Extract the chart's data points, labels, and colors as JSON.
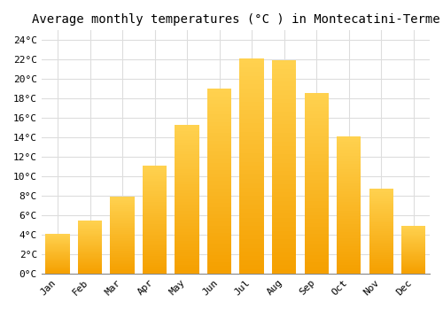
{
  "months": [
    "Jan",
    "Feb",
    "Mar",
    "Apr",
    "May",
    "Jun",
    "Jul",
    "Aug",
    "Sep",
    "Oct",
    "Nov",
    "Dec"
  ],
  "temperatures": [
    4.1,
    5.4,
    7.9,
    11.1,
    15.3,
    19.0,
    22.1,
    21.9,
    18.6,
    14.1,
    8.7,
    4.9
  ],
  "bar_color_light": "#FFCC44",
  "bar_color_dark": "#F5A000",
  "title": "Average monthly temperatures (°C ) in Montecatini-Terme",
  "title_fontsize": 10,
  "ylim": [
    0,
    25
  ],
  "ytick_values": [
    0,
    2,
    4,
    6,
    8,
    10,
    12,
    14,
    16,
    18,
    20,
    22,
    24
  ],
  "ytick_labels": [
    "0°C",
    "2°C",
    "4°C",
    "6°C",
    "8°C",
    "10°C",
    "12°C",
    "14°C",
    "16°C",
    "18°C",
    "20°C",
    "22°C",
    "24°C"
  ],
  "background_color": "#FFFFFF",
  "grid_color": "#DDDDDD",
  "tick_label_fontsize": 8,
  "font_family": "monospace",
  "bar_width": 0.75,
  "n_gradient_steps": 50
}
